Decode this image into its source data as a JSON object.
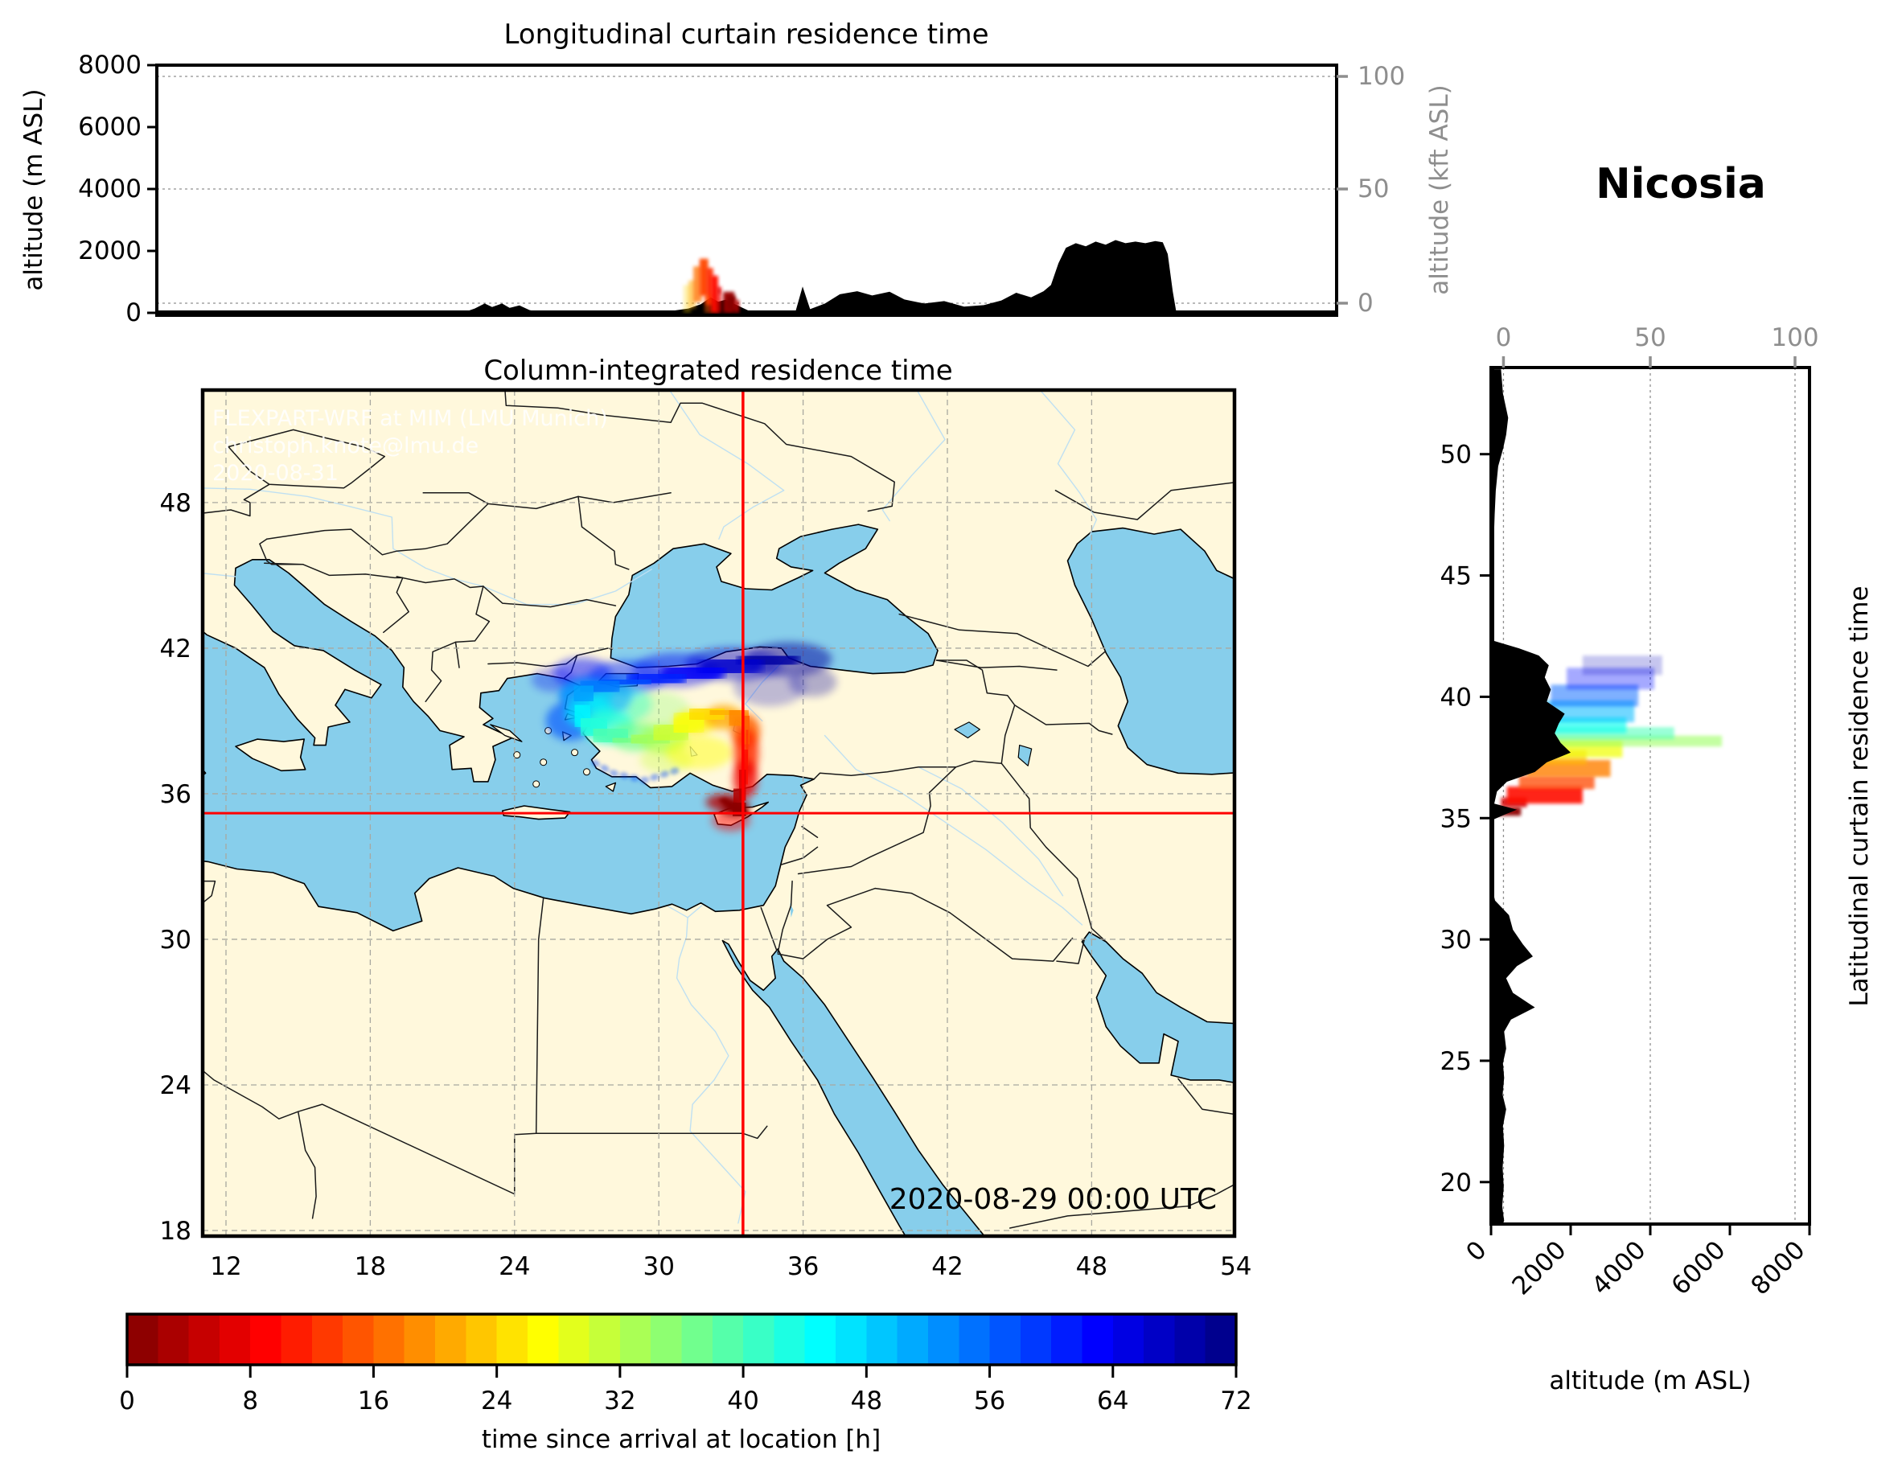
{
  "station": "Nicosia",
  "datetime_label": "2020-08-29 00:00 UTC",
  "watermark": {
    "line1": "FLEXPART-WRF at MIM (LMU Munich)",
    "line2": "christoph.knote@lmu.de",
    "line3": "2020-08-31"
  },
  "colors": {
    "land": "#FFF8DC",
    "ocean": "#87CEEB",
    "river": "#BCDEF2",
    "terrain": "#000000",
    "crosshair": "#FF0000",
    "graticule": "#A8A8A0",
    "grid_dash": "#909090",
    "secondary_axis_gray": "#8E8E8E",
    "colormap_start": "#800000",
    "colormap_end": "#000080"
  },
  "top_curtain": {
    "title": "Longitudinal curtain residence time",
    "ylabel_left": "altitude (m ASL)",
    "ylabel_right": "altitude (kft ASL)",
    "yticks_left": [
      0,
      2000,
      4000,
      6000,
      8000
    ],
    "yticks_right": [
      0,
      50,
      100
    ],
    "alt_range_m": [
      0,
      8000
    ]
  },
  "map": {
    "title": "Column-integrated residence time",
    "xticks": [
      12,
      18,
      24,
      30,
      36,
      42,
      48,
      54
    ],
    "yticks": [
      18,
      24,
      30,
      36,
      42,
      48
    ],
    "lon_range": [
      11.0,
      53.9
    ],
    "lat_range": [
      17.8,
      52.6
    ],
    "crosshair": {
      "lon": 33.5,
      "lat": 35.2
    }
  },
  "right_curtain": {
    "right_label": "Latitudinal curtain residence time",
    "xlabel": "altitude (m ASL)",
    "xticks_bottom": [
      0,
      2000,
      4000,
      6000,
      8000
    ],
    "xticks_top": [
      0,
      50,
      100
    ],
    "yticks": [
      20,
      25,
      30,
      35,
      40,
      45,
      50
    ]
  },
  "colorbar": {
    "label": "time since arrival at location [h]",
    "ticks": [
      0,
      8,
      16,
      24,
      32,
      40,
      48,
      56,
      64,
      72
    ],
    "range_h": [
      0,
      72
    ],
    "colormap": "jet reversed (dark red at 0 h to dark navy at 72 h)"
  },
  "chart_data": {
    "type": "heatmap",
    "description": "FLEXPART-WRF backward residence-time plot for Nicosia: column-integrated map plume, longitudinal curtain (alt vs lon), latitudinal curtain (alt vs lat); color = time since arrival [h], jet-reversed colormap 0-72 h.",
    "source_point": {
      "name": "Nicosia",
      "lon": 33.5,
      "lat": 35.2
    },
    "map_plume_spine_lon_lat_h": [
      [
        33.5,
        35.2,
        0
      ],
      [
        33.2,
        35.5,
        2
      ],
      [
        33.4,
        36.0,
        5
      ],
      [
        33.55,
        36.7,
        8
      ],
      [
        33.65,
        37.5,
        11
      ],
      [
        33.7,
        38.3,
        14
      ],
      [
        33.55,
        38.95,
        17
      ],
      [
        33.1,
        39.3,
        20
      ],
      [
        32.4,
        39.4,
        23
      ],
      [
        31.6,
        39.15,
        26
      ],
      [
        30.9,
        38.7,
        29
      ],
      [
        30.1,
        38.35,
        32
      ],
      [
        29.2,
        38.15,
        35
      ],
      [
        28.4,
        38.25,
        38
      ],
      [
        27.6,
        38.55,
        41
      ],
      [
        27.0,
        38.95,
        44
      ],
      [
        26.65,
        39.45,
        47
      ],
      [
        26.65,
        39.95,
        50
      ],
      [
        27.1,
        40.3,
        53
      ],
      [
        28.0,
        40.55,
        56
      ],
      [
        29.2,
        40.65,
        59
      ],
      [
        30.6,
        40.85,
        62
      ],
      [
        32.2,
        41.1,
        65
      ],
      [
        33.8,
        41.4,
        68
      ],
      [
        35.3,
        41.6,
        71
      ]
    ],
    "map_plume_blobs_lon_lat_rx_ry_h_op": [
      [
        33.2,
        35.4,
        0.6,
        0.3,
        1,
        0.95
      ],
      [
        32.75,
        35.65,
        0.8,
        0.35,
        4,
        0.8
      ],
      [
        33.0,
        34.9,
        0.8,
        0.45,
        9,
        0.5
      ],
      [
        33.6,
        36.6,
        0.5,
        0.8,
        8,
        0.8
      ],
      [
        33.65,
        37.7,
        0.5,
        1.0,
        12,
        0.85
      ],
      [
        33.6,
        38.6,
        0.6,
        0.7,
        16,
        0.85
      ],
      [
        32.7,
        39.15,
        0.8,
        0.5,
        21,
        0.8
      ],
      [
        31.5,
        38.95,
        0.9,
        0.5,
        26,
        0.75
      ],
      [
        31.7,
        37.7,
        1.4,
        0.7,
        27,
        0.45
      ],
      [
        30.3,
        37.4,
        1.1,
        0.55,
        31,
        0.35
      ],
      [
        30.2,
        38.25,
        1.0,
        0.6,
        33,
        0.75
      ],
      [
        29.0,
        38.35,
        1.0,
        0.6,
        37,
        0.7
      ],
      [
        27.9,
        38.75,
        1.1,
        0.7,
        42,
        0.75
      ],
      [
        27.1,
        39.35,
        1.0,
        0.7,
        47,
        0.75
      ],
      [
        28.4,
        39.7,
        1.3,
        0.8,
        44,
        0.45
      ],
      [
        27.0,
        40.1,
        1.1,
        0.6,
        52,
        0.75
      ],
      [
        26.3,
        39.0,
        1.0,
        0.8,
        57,
        0.65
      ],
      [
        27.4,
        40.0,
        1.5,
        0.9,
        57,
        0.55
      ],
      [
        26.8,
        41.0,
        1.2,
        0.6,
        62,
        0.5
      ],
      [
        25.6,
        40.7,
        0.9,
        0.5,
        64,
        0.3
      ],
      [
        28.7,
        40.8,
        1.6,
        0.7,
        60,
        0.5
      ],
      [
        30.7,
        41.1,
        1.8,
        0.7,
        64,
        0.45
      ],
      [
        33.1,
        41.35,
        2.0,
        0.7,
        67,
        0.45
      ],
      [
        35.4,
        41.55,
        1.8,
        0.7,
        70,
        0.5
      ],
      [
        36.4,
        40.6,
        1.0,
        0.6,
        70,
        0.3
      ],
      [
        34.6,
        40.4,
        1.5,
        0.8,
        68,
        0.25
      ],
      [
        30.0,
        39.4,
        1.3,
        0.8,
        35,
        0.3
      ]
    ],
    "top_curtain_terrain_lon_elev_m": [
      [
        10.5,
        0
      ],
      [
        22.8,
        0
      ],
      [
        23.3,
        140
      ],
      [
        23.7,
        300
      ],
      [
        24.0,
        190
      ],
      [
        24.4,
        300
      ],
      [
        24.7,
        160
      ],
      [
        25.1,
        240
      ],
      [
        25.5,
        90
      ],
      [
        26.0,
        0
      ],
      [
        30.6,
        0
      ],
      [
        31.3,
        70
      ],
      [
        31.9,
        140
      ],
      [
        32.4,
        280
      ],
      [
        32.8,
        500
      ],
      [
        33.1,
        360
      ],
      [
        33.4,
        420
      ],
      [
        33.8,
        270
      ],
      [
        34.3,
        80
      ],
      [
        34.8,
        0
      ],
      [
        36.2,
        0
      ],
      [
        36.5,
        850
      ],
      [
        36.8,
        120
      ],
      [
        37.4,
        300
      ],
      [
        38.0,
        600
      ],
      [
        38.7,
        700
      ],
      [
        39.3,
        560
      ],
      [
        40.0,
        680
      ],
      [
        40.6,
        430
      ],
      [
        41.4,
        300
      ],
      [
        42.2,
        380
      ],
      [
        43.0,
        200
      ],
      [
        43.8,
        250
      ],
      [
        44.5,
        400
      ],
      [
        45.1,
        650
      ],
      [
        45.7,
        500
      ],
      [
        46.2,
        700
      ],
      [
        46.5,
        900
      ],
      [
        46.8,
        1600
      ],
      [
        47.1,
        2100
      ],
      [
        47.5,
        2250
      ],
      [
        47.9,
        2150
      ],
      [
        48.3,
        2300
      ],
      [
        48.7,
        2200
      ],
      [
        49.1,
        2350
      ],
      [
        49.5,
        2250
      ],
      [
        49.9,
        2300
      ],
      [
        50.3,
        2250
      ],
      [
        50.7,
        2320
      ],
      [
        51.0,
        2280
      ],
      [
        51.2,
        1900
      ],
      [
        51.4,
        700
      ],
      [
        51.55,
        0
      ],
      [
        58.0,
        0
      ]
    ],
    "top_curtain_plume_lon0_lon1_alt0_alt1_h_op": [
      [
        31.7,
        32.0,
        0,
        900,
        24,
        0.3
      ],
      [
        31.9,
        32.2,
        150,
        1050,
        21,
        0.5
      ],
      [
        32.1,
        32.45,
        350,
        1500,
        17,
        0.75
      ],
      [
        32.35,
        32.7,
        550,
        1750,
        14,
        0.95
      ],
      [
        32.6,
        32.9,
        250,
        1450,
        12,
        0.9
      ],
      [
        32.55,
        32.85,
        0,
        600,
        15,
        0.5
      ],
      [
        32.8,
        33.1,
        0,
        1200,
        10,
        0.95
      ],
      [
        33.0,
        33.25,
        0,
        850,
        8,
        0.6
      ],
      [
        33.3,
        33.75,
        0,
        680,
        2,
        0.95
      ],
      [
        33.45,
        33.8,
        100,
        550,
        0.5,
        1
      ],
      [
        33.75,
        33.95,
        0,
        420,
        4,
        0.85
      ],
      [
        33.1,
        33.2,
        620,
        780,
        6,
        0.8
      ]
    ],
    "right_curtain_terrain_lat_elev_m": [
      [
        53.5,
        250
      ],
      [
        52.5,
        300
      ],
      [
        51.5,
        430
      ],
      [
        50.8,
        380
      ],
      [
        50.2,
        300
      ],
      [
        49.5,
        180
      ],
      [
        48.5,
        120
      ],
      [
        47.5,
        90
      ],
      [
        46.0,
        60
      ],
      [
        44.5,
        50
      ],
      [
        43.0,
        60
      ],
      [
        42.3,
        80
      ],
      [
        42.0,
        700
      ],
      [
        41.7,
        1200
      ],
      [
        41.3,
        1450
      ],
      [
        40.8,
        1350
      ],
      [
        40.3,
        1500
      ],
      [
        39.8,
        1400
      ],
      [
        39.3,
        1850
      ],
      [
        38.9,
        1700
      ],
      [
        38.5,
        1600
      ],
      [
        38.1,
        1750
      ],
      [
        37.7,
        2000
      ],
      [
        37.3,
        1400
      ],
      [
        36.9,
        1100
      ],
      [
        36.5,
        400
      ],
      [
        36.1,
        150
      ],
      [
        35.6,
        80
      ],
      [
        35.35,
        650
      ],
      [
        35.15,
        350
      ],
      [
        34.9,
        0
      ],
      [
        32.3,
        0
      ],
      [
        31.6,
        100
      ],
      [
        31.0,
        450
      ],
      [
        30.4,
        550
      ],
      [
        29.8,
        800
      ],
      [
        29.3,
        1050
      ],
      [
        28.9,
        650
      ],
      [
        28.4,
        380
      ],
      [
        27.8,
        550
      ],
      [
        27.2,
        1100
      ],
      [
        26.7,
        500
      ],
      [
        26.2,
        330
      ],
      [
        25.5,
        380
      ],
      [
        24.9,
        300
      ],
      [
        24.3,
        330
      ],
      [
        23.6,
        290
      ],
      [
        23.0,
        380
      ],
      [
        22.3,
        300
      ],
      [
        21.5,
        330
      ],
      [
        20.6,
        290
      ],
      [
        19.8,
        320
      ],
      [
        19.0,
        280
      ],
      [
        18.4,
        330
      ],
      [
        18.3,
        300
      ]
    ],
    "right_curtain_plume_lat0_lat1_alt0_alt1_h_op": [
      [
        35.1,
        35.45,
        150,
        750,
        1,
        0.95
      ],
      [
        35.45,
        35.85,
        250,
        900,
        6,
        0.85
      ],
      [
        35.6,
        36.3,
        400,
        2300,
        10,
        0.9
      ],
      [
        36.2,
        36.75,
        700,
        2600,
        14,
        0.75
      ],
      [
        36.7,
        37.4,
        900,
        3000,
        18,
        0.8
      ],
      [
        37.2,
        37.8,
        700,
        2400,
        22,
        0.65
      ],
      [
        37.5,
        38.2,
        900,
        3300,
        28,
        0.75
      ],
      [
        37.95,
        38.4,
        1200,
        5800,
        34,
        0.6
      ],
      [
        38.25,
        38.75,
        1000,
        4600,
        40,
        0.55
      ],
      [
        38.5,
        39.15,
        1100,
        3400,
        44,
        0.65
      ],
      [
        38.95,
        39.85,
        1300,
        3600,
        50,
        0.55
      ],
      [
        39.6,
        40.5,
        1500,
        3700,
        56,
        0.5
      ],
      [
        40.3,
        41.2,
        1900,
        4100,
        62,
        0.35
      ],
      [
        40.9,
        41.7,
        2300,
        4300,
        68,
        0.22
      ]
    ]
  }
}
